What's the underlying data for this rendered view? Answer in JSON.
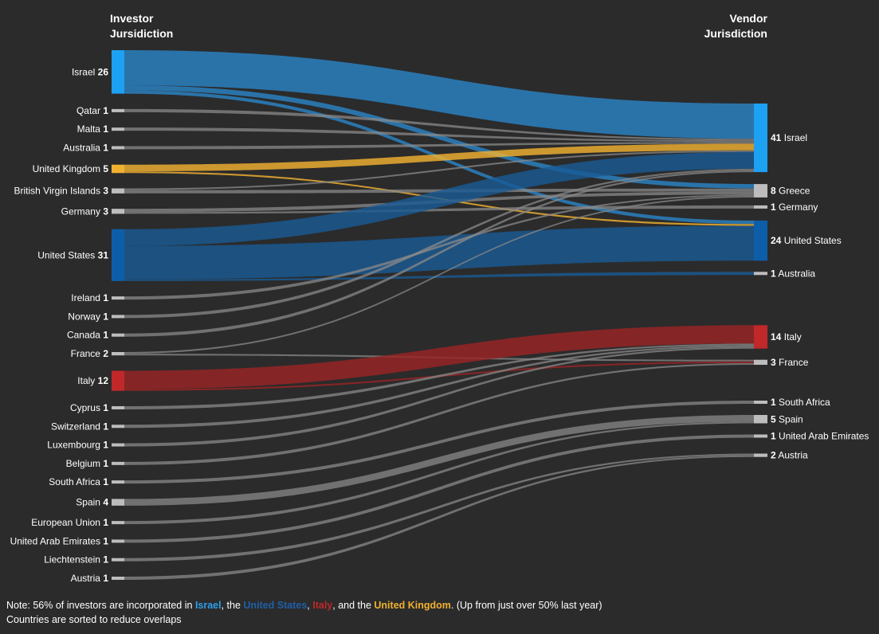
{
  "headers": {
    "left": [
      "Investor",
      "Jursidiction"
    ],
    "right": [
      "Vendor",
      "Jurisdiction"
    ]
  },
  "colors": {
    "background": "#2b2b2b",
    "israel": "#1da1f2",
    "israel_flow": "#2b84c6",
    "united_states": "#0d5ea8",
    "united_states_flow": "#1a5a94",
    "italy": "#c0282a",
    "italy_flow": "#9a2526",
    "united_kingdom": "#f0b131",
    "other": "#bdbdbd",
    "other_flow": "#8a8a8a"
  },
  "chart_data": {
    "type": "sankey",
    "sources": [
      {
        "name": "Israel",
        "value": 26,
        "color": "israel"
      },
      {
        "name": "Qatar",
        "value": 1,
        "color": "other"
      },
      {
        "name": "Malta",
        "value": 1,
        "color": "other"
      },
      {
        "name": "Australia",
        "value": 1,
        "color": "other"
      },
      {
        "name": "United Kingdom",
        "value": 5,
        "color": "united_kingdom"
      },
      {
        "name": "British Virgin Islands",
        "value": 3,
        "color": "other"
      },
      {
        "name": "Germany",
        "value": 3,
        "color": "other"
      },
      {
        "name": "United States",
        "value": 31,
        "color": "united_states"
      },
      {
        "name": "Ireland",
        "value": 1,
        "color": "other"
      },
      {
        "name": "Norway",
        "value": 1,
        "color": "other"
      },
      {
        "name": "Canada",
        "value": 1,
        "color": "other"
      },
      {
        "name": "France",
        "value": 2,
        "color": "other"
      },
      {
        "name": "Italy",
        "value": 12,
        "color": "italy"
      },
      {
        "name": "Cyprus",
        "value": 1,
        "color": "other"
      },
      {
        "name": "Switzerland",
        "value": 1,
        "color": "other"
      },
      {
        "name": "Luxembourg",
        "value": 1,
        "color": "other"
      },
      {
        "name": "Belgium",
        "value": 1,
        "color": "other"
      },
      {
        "name": "South Africa",
        "value": 1,
        "color": "other"
      },
      {
        "name": "Spain",
        "value": 4,
        "color": "other"
      },
      {
        "name": "European Union",
        "value": 1,
        "color": "other"
      },
      {
        "name": "United Arab Emirates",
        "value": 1,
        "color": "other"
      },
      {
        "name": "Liechtenstein",
        "value": 1,
        "color": "other"
      },
      {
        "name": "Austria",
        "value": 1,
        "color": "other"
      }
    ],
    "targets": [
      {
        "name": "Israel",
        "value": 41,
        "color": "israel"
      },
      {
        "name": "Greece",
        "value": 8,
        "color": "other"
      },
      {
        "name": "Germany",
        "value": 1,
        "color": "other"
      },
      {
        "name": "United States",
        "value": 24,
        "color": "united_states"
      },
      {
        "name": "Australia",
        "value": 1,
        "color": "other"
      },
      {
        "name": "Italy",
        "value": 14,
        "color": "italy"
      },
      {
        "name": "France",
        "value": 3,
        "color": "other"
      },
      {
        "name": "South Africa",
        "value": 1,
        "color": "other"
      },
      {
        "name": "Spain",
        "value": 5,
        "color": "other"
      },
      {
        "name": "United Arab Emirates",
        "value": 1,
        "color": "other"
      },
      {
        "name": "Austria",
        "value": 2,
        "color": "other"
      }
    ],
    "links": [
      {
        "source": "Israel",
        "target": "Israel",
        "value": 21
      },
      {
        "source": "Israel",
        "target": "Greece",
        "value": 3
      },
      {
        "source": "Israel",
        "target": "United States",
        "value": 2
      },
      {
        "source": "Qatar",
        "target": "Israel",
        "value": 1
      },
      {
        "source": "Malta",
        "target": "Israel",
        "value": 1
      },
      {
        "source": "Australia",
        "target": "Israel",
        "value": 1
      },
      {
        "source": "United Kingdom",
        "target": "Israel",
        "value": 4
      },
      {
        "source": "United Kingdom",
        "target": "United States",
        "value": 1
      },
      {
        "source": "British Virgin Islands",
        "target": "Israel",
        "value": 1
      },
      {
        "source": "British Virgin Islands",
        "target": "Greece",
        "value": 2
      },
      {
        "source": "Germany",
        "target": "Greece",
        "value": 2
      },
      {
        "source": "Germany",
        "target": "Germany",
        "value": 1
      },
      {
        "source": "United States",
        "target": "Israel",
        "value": 10
      },
      {
        "source": "United States",
        "target": "United States",
        "value": 20
      },
      {
        "source": "United States",
        "target": "Australia",
        "value": 1
      },
      {
        "source": "Ireland",
        "target": "Greece",
        "value": 1
      },
      {
        "source": "Norway",
        "target": "Israel",
        "value": 1
      },
      {
        "source": "Canada",
        "target": "Israel",
        "value": 1
      },
      {
        "source": "France",
        "target": "Greece",
        "value": 1
      },
      {
        "source": "France",
        "target": "France",
        "value": 1
      },
      {
        "source": "Italy",
        "target": "Italy",
        "value": 11
      },
      {
        "source": "Italy",
        "target": "France",
        "value": 1
      },
      {
        "source": "Cyprus",
        "target": "Italy",
        "value": 1
      },
      {
        "source": "Switzerland",
        "target": "Italy",
        "value": 1
      },
      {
        "source": "Luxembourg",
        "target": "Italy",
        "value": 1
      },
      {
        "source": "Belgium",
        "target": "France",
        "value": 1
      },
      {
        "source": "South Africa",
        "target": "South Africa",
        "value": 1
      },
      {
        "source": "Spain",
        "target": "Spain",
        "value": 4
      },
      {
        "source": "European Union",
        "target": "Spain",
        "value": 1
      },
      {
        "source": "United Arab Emirates",
        "target": "United Arab Emirates",
        "value": 1
      },
      {
        "source": "Liechtenstein",
        "target": "Austria",
        "value": 1
      },
      {
        "source": "Austria",
        "target": "Austria",
        "value": 1
      }
    ]
  },
  "note": {
    "prefix": "Note: 56% of investors are incorporated in ",
    "israel": "Israel",
    "sep1": ", the ",
    "united_states": "United States",
    "sep2": ", ",
    "italy": "Italy",
    "sep3": ", and the ",
    "united_kingdom": "United Kingdom",
    "suffix": ". (Up from just over 50% last year)",
    "line2": "Countries are sorted to reduce overlaps"
  }
}
